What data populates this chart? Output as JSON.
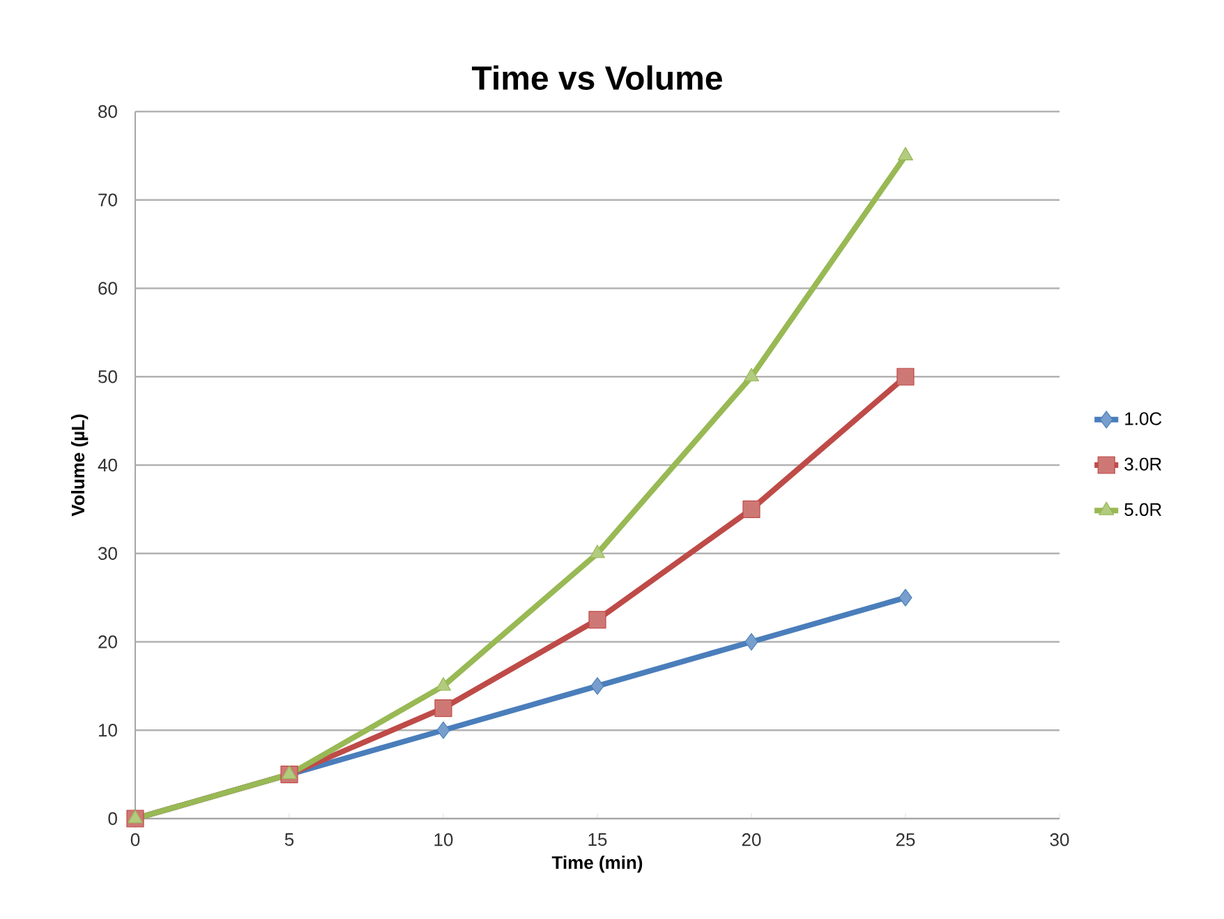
{
  "chart_data": {
    "type": "line",
    "title": "Time vs Volume",
    "xlabel": "Time (min)",
    "ylabel": "Volume (µL)",
    "x": [
      0,
      5,
      10,
      15,
      20,
      25
    ],
    "series": [
      {
        "name": "1.0C",
        "color": "#4a7ebb",
        "marker": "diamond",
        "values": [
          0,
          5,
          10,
          15,
          20,
          25
        ]
      },
      {
        "name": "3.0R",
        "color": "#be4b48",
        "marker": "square",
        "values": [
          0,
          5,
          12.5,
          22.5,
          35,
          50
        ]
      },
      {
        "name": "5.0R",
        "color": "#98b954",
        "marker": "triangle",
        "values": [
          0,
          5,
          15,
          30,
          50,
          75
        ]
      }
    ],
    "xlim": [
      0,
      30
    ],
    "xticks": [
      0,
      5,
      10,
      15,
      20,
      25,
      30
    ],
    "ylim": [
      0,
      80
    ],
    "yticks": [
      0,
      10,
      20,
      30,
      40,
      50,
      60,
      70,
      80
    ],
    "grid": "y",
    "legend": "right",
    "line_style": "solid"
  }
}
